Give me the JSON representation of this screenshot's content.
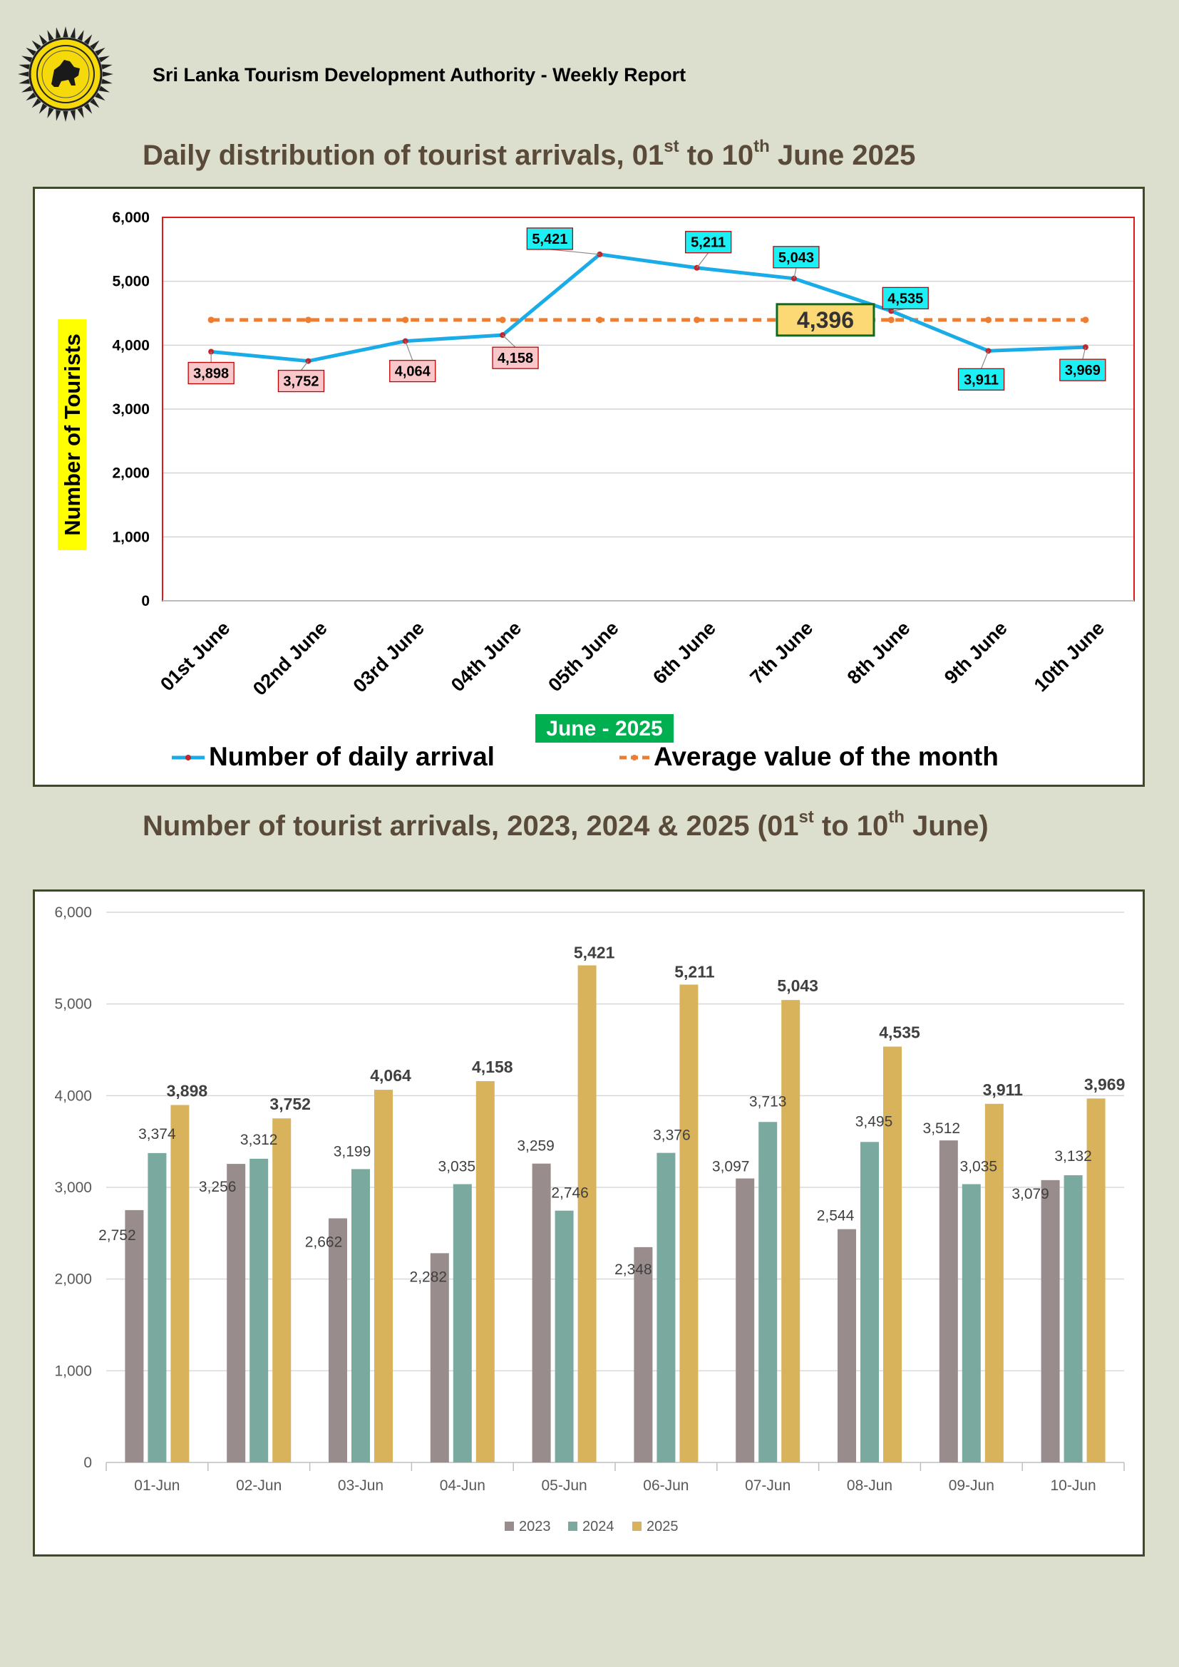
{
  "header": {
    "org_title": "Sri Lanka Tourism Development Authority - Weekly Report"
  },
  "chart1_title": {
    "pre": "Daily distribution of tourist arrivals, 01",
    "sup1": "st",
    "mid": " to 10",
    "sup2": "th",
    "post": " June 2025"
  },
  "chart2_title": {
    "pre": "Number of tourist arrivals, 2023, 2024 & 2025 (01",
    "sup1": "st",
    "mid": " to 10",
    "sup2": "th",
    "post": " June)"
  },
  "colors": {
    "page_bg": "#dcdfcd",
    "title_brown": "#5a4a3a",
    "daily_line": "#1aace6",
    "average_line": "#ed7d31",
    "label_pink": "#f9c6c9",
    "label_cyan": "#1cf0f5",
    "avg_box": "#fcd974",
    "bar_2023": "#988c8c",
    "bar_2024": "#7aa9a0",
    "bar_2025": "#d8b35c",
    "plot_border": "#e01a1a",
    "xlabel_bg": "#00b050"
  },
  "chart_data": [
    {
      "type": "line",
      "categories": [
        "01st June",
        "02nd June",
        "03rd June",
        "04th June",
        "05th June",
        "6th June",
        "7th June",
        "8th June",
        "9th June",
        "10th June"
      ],
      "series": [
        {
          "name": "Number of daily arrival",
          "values": [
            3898,
            3752,
            4064,
            4158,
            5421,
            5211,
            5043,
            4535,
            3911,
            3969
          ],
          "labels": [
            "3,898",
            "3,752",
            "4,064",
            "4,158",
            "5,421",
            "5,211",
            "5,043",
            "4,535",
            "3,911",
            "3,969"
          ]
        },
        {
          "name": "Average value of the month",
          "values": [
            4396,
            4396,
            4396,
            4396,
            4396,
            4396,
            4396,
            4396,
            4396,
            4396
          ]
        }
      ],
      "average_label": "4,396",
      "xlabel": "June - 2025",
      "ylabel": "Number of Tourists",
      "ylim": [
        0,
        6000
      ],
      "yticks": [
        "0",
        "1,000",
        "2,000",
        "3,000",
        "4,000",
        "5,000",
        "6,000"
      ],
      "grid": true,
      "legend": "bottom"
    },
    {
      "type": "bar",
      "categories": [
        "01-Jun",
        "02-Jun",
        "03-Jun",
        "04-Jun",
        "05-Jun",
        "06-Jun",
        "07-Jun",
        "08-Jun",
        "09-Jun",
        "10-Jun"
      ],
      "series": [
        {
          "name": "2023",
          "values": [
            2752,
            3256,
            2662,
            2282,
            3259,
            2348,
            3097,
            2544,
            3512,
            3079
          ],
          "labels": [
            "2,752",
            "3,256",
            "2,662",
            "2,282",
            "3,259",
            "2,348",
            "3,097",
            "2,544",
            "3,512",
            "3,079"
          ]
        },
        {
          "name": "2024",
          "values": [
            3374,
            3312,
            3199,
            3035,
            2746,
            3376,
            3713,
            3495,
            3035,
            3132
          ],
          "labels": [
            "3,374",
            "3,312",
            "3,199",
            "3,035",
            "2,746",
            "3,376",
            "3,713",
            "3,495",
            "3,035",
            "3,132"
          ]
        },
        {
          "name": "2025",
          "values": [
            3898,
            3752,
            4064,
            4158,
            5421,
            5211,
            5043,
            4535,
            3911,
            3969
          ],
          "labels": [
            "3,898",
            "3,752",
            "4,064",
            "4,158",
            "5,421",
            "5,211",
            "5,043",
            "4,535",
            "3,911",
            "3,969"
          ]
        }
      ],
      "ylim": [
        0,
        6000
      ],
      "yticks": [
        "0",
        "1,000",
        "2,000",
        "3,000",
        "4,000",
        "5,000",
        "6,000"
      ],
      "grid": true,
      "legend": "bottom"
    }
  ]
}
